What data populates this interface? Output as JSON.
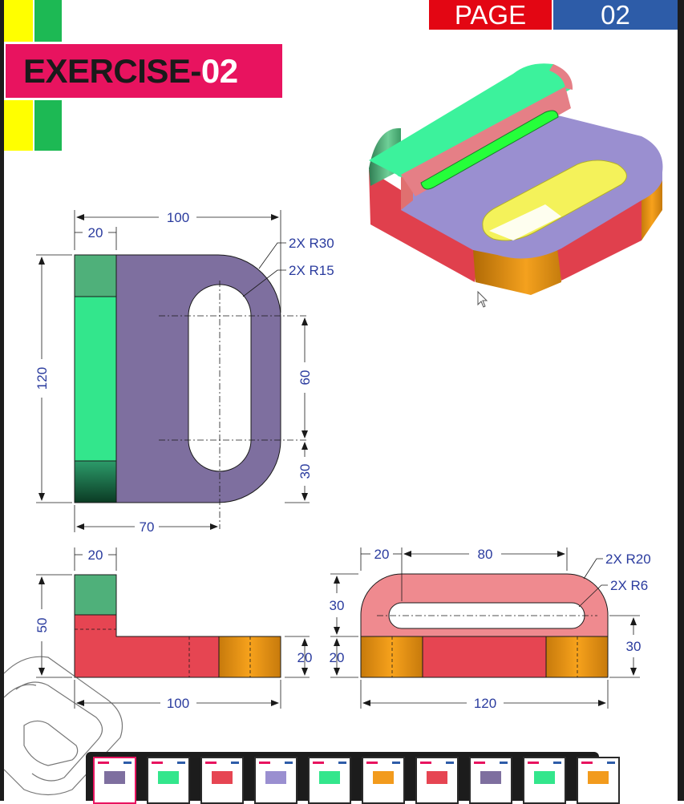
{
  "header": {
    "title_main": "EXERCISE-",
    "title_num": "02",
    "page_label": "PAGE",
    "page_number": "02"
  },
  "dimensions": {
    "front": {
      "overall_width": "100",
      "flange_width": "20",
      "radius_outer": "2X R30",
      "radius_inner": "2X R15",
      "height": "120",
      "slot_length": "60",
      "slot_offset": "30",
      "slot_center": "70"
    },
    "side": {
      "flange_width": "20",
      "height": "50",
      "base_thickness": "20",
      "length": "100"
    },
    "end": {
      "left_offset": "20",
      "slot_length": "80",
      "radius_outer": "2X R20",
      "radius_inner": "2X R6",
      "upper_height": "30",
      "lower_height": "20",
      "right_height": "30",
      "width": "120"
    }
  },
  "colors": {
    "title_bg": "#e8135f",
    "page_label_bg": "#e30613",
    "page_number_bg": "#2d5ca8",
    "dim_blue": "#2a3b9e",
    "purple_face": "#7e6f9f",
    "green_face": "#33e68c",
    "red_face": "#e64552",
    "orange_face": "#f29b1d",
    "pink_face": "#ef8a8f",
    "yellow_bar": "#ffff00",
    "green_bar": "#1db954"
  },
  "thumbnails_count": 10
}
